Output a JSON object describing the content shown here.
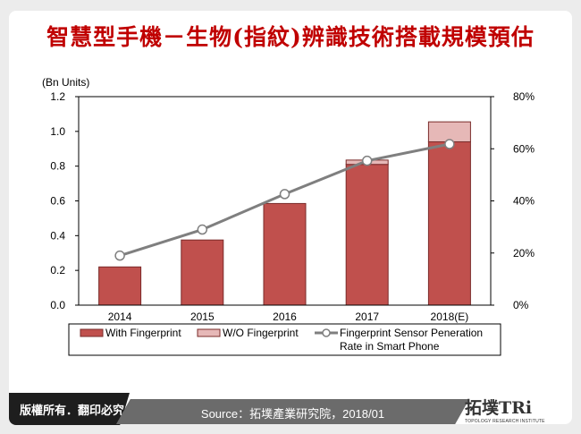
{
  "title": "智慧型手機－生物(指紋)辨識技術搭載規模預估",
  "footer": {
    "copyright": "版權所有．翻印必究",
    "source": "Source：拓墣產業研究院，2018/01",
    "logo_text": "拓墣TRi",
    "logo_subtext": "TOPOLOGY RESEARCH INSTITUTE"
  },
  "chart_data": {
    "type": "bar",
    "stacked": true,
    "categories": [
      "2014",
      "2015",
      "2016",
      "2017",
      "2018(E)"
    ],
    "ylabel": "(Bn Units)",
    "ylim": [
      0,
      1.2
    ],
    "y_ticks": [
      "0.0",
      "0.2",
      "0.4",
      "0.6",
      "0.8",
      "1.0",
      "1.2"
    ],
    "y2lim": [
      0,
      80
    ],
    "y2_ticks": [
      "0%",
      "20%",
      "40%",
      "60%",
      "80%"
    ],
    "series": [
      {
        "name": "With Fingerprint",
        "type": "bar",
        "color": "#c0504d",
        "values": [
          0.22,
          0.375,
          0.585,
          0.81,
          0.94
        ]
      },
      {
        "name": "W/O Fingerprint",
        "type": "bar",
        "color": "#e6b8b7",
        "values": [
          0,
          0,
          0,
          0.025,
          0.115
        ]
      },
      {
        "name": "Fingerprint Sensor Peneration Rate in Smart Phone",
        "type": "line",
        "axis": "right",
        "color": "#7f7f7f",
        "values": [
          19,
          29,
          42.6,
          55.4,
          61.8
        ]
      }
    ],
    "legend_position": "bottom",
    "legend_labels": [
      "With Fingerprint",
      "W/O Fingerprint",
      "Fingerprint Sensor Peneration",
      "Rate in Smart Phone"
    ]
  }
}
